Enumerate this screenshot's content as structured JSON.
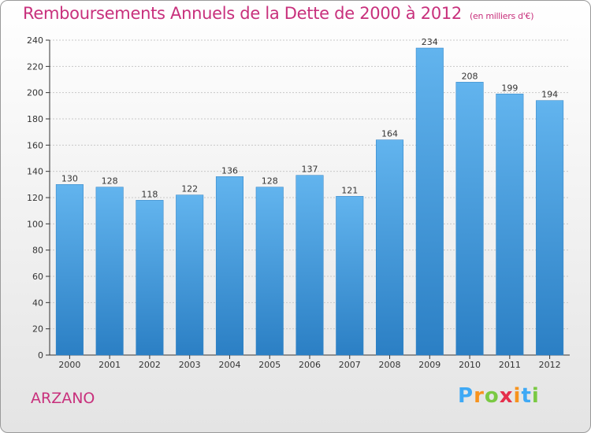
{
  "header": {
    "title": "Remboursements Annuels de la Dette de 2000 à 2012",
    "subtitle": "(en milliers d'€)"
  },
  "footer": {
    "commune": "ARZANO",
    "logo_letters": [
      "P",
      "r",
      "o",
      "x",
      "i",
      "t",
      "i"
    ],
    "logo_colors": [
      "#3fa9f5",
      "#f7931e",
      "#7ac943",
      "#e5304c",
      "#f7931e",
      "#3fa9f5",
      "#7ac943"
    ]
  },
  "colors": {
    "bar": "#4fa3e3",
    "bar_light": "#62b4ee",
    "bar_dark": "#2b7fc4",
    "grid": "#c8c8c8",
    "axis": "#333333",
    "accent": "#c8307c"
  },
  "chart_data": {
    "type": "bar",
    "title": "Remboursements Annuels de la Dette de 2000 à 2012",
    "subtitle": "(en milliers d'€)",
    "xlabel": "",
    "ylabel": "",
    "categories": [
      "2000",
      "2001",
      "2002",
      "2003",
      "2004",
      "2005",
      "2006",
      "2007",
      "2008",
      "2009",
      "2010",
      "2011",
      "2012"
    ],
    "values": [
      130,
      128,
      118,
      122,
      136,
      128,
      137,
      121,
      164,
      234,
      208,
      199,
      194
    ],
    "data_labels": [
      "130",
      "128",
      "118",
      "122",
      "136",
      "128",
      "137",
      "121",
      "164",
      "234",
      "208",
      "199",
      "194"
    ],
    "ylim": [
      0,
      240
    ],
    "yticks": [
      0,
      20,
      40,
      60,
      80,
      100,
      120,
      140,
      160,
      180,
      200,
      220,
      240
    ],
    "ytick_labels": [
      "0",
      "20",
      "40",
      "60",
      "80",
      "100",
      "120",
      "140",
      "160",
      "180",
      "200",
      "220",
      "240"
    ],
    "grid": true,
    "legend": "none"
  }
}
